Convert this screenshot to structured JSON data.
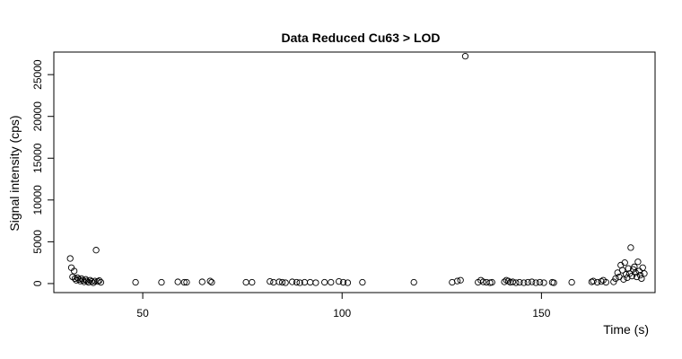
{
  "chart_data": {
    "type": "scatter",
    "title": "Data Reduced Cu63 > LOD",
    "xlabel": "Time (s)",
    "ylabel": "Signal intensity (cps)",
    "xlim": [
      27.7,
      178.5
    ],
    "ylim": [
      -1080,
      27700
    ],
    "xticks": [
      50,
      100,
      150
    ],
    "yticks": [
      0,
      5000,
      10000,
      15000,
      20000,
      25000
    ],
    "marker": "open-circle",
    "grid": false,
    "legend": "none",
    "points": [
      {
        "x": 31.8,
        "y": 3000
      },
      {
        "x": 32.1,
        "y": 1900
      },
      {
        "x": 32.4,
        "y": 800
      },
      {
        "x": 32.8,
        "y": 1500
      },
      {
        "x": 33.0,
        "y": 600
      },
      {
        "x": 33.3,
        "y": 400
      },
      {
        "x": 33.6,
        "y": 700
      },
      {
        "x": 34.0,
        "y": 500
      },
      {
        "x": 34.3,
        "y": 300
      },
      {
        "x": 34.6,
        "y": 600
      },
      {
        "x": 35.0,
        "y": 400
      },
      {
        "x": 35.3,
        "y": 200
      },
      {
        "x": 35.7,
        "y": 500
      },
      {
        "x": 36.0,
        "y": 300
      },
      {
        "x": 36.4,
        "y": 150
      },
      {
        "x": 36.8,
        "y": 400
      },
      {
        "x": 37.2,
        "y": 250
      },
      {
        "x": 37.6,
        "y": 100
      },
      {
        "x": 38.0,
        "y": 300
      },
      {
        "x": 38.3,
        "y": 4000
      },
      {
        "x": 38.7,
        "y": 250
      },
      {
        "x": 39.1,
        "y": 350
      },
      {
        "x": 39.5,
        "y": 150
      },
      {
        "x": 48.2,
        "y": 150
      },
      {
        "x": 54.7,
        "y": 150
      },
      {
        "x": 58.8,
        "y": 200
      },
      {
        "x": 60.4,
        "y": 150
      },
      {
        "x": 61.0,
        "y": 150
      },
      {
        "x": 64.9,
        "y": 200
      },
      {
        "x": 66.9,
        "y": 300
      },
      {
        "x": 67.3,
        "y": 150
      },
      {
        "x": 75.9,
        "y": 150
      },
      {
        "x": 77.4,
        "y": 150
      },
      {
        "x": 81.9,
        "y": 250
      },
      {
        "x": 82.8,
        "y": 150
      },
      {
        "x": 84.2,
        "y": 200
      },
      {
        "x": 85.0,
        "y": 150
      },
      {
        "x": 85.8,
        "y": 100
      },
      {
        "x": 87.5,
        "y": 200
      },
      {
        "x": 88.6,
        "y": 150
      },
      {
        "x": 89.4,
        "y": 100
      },
      {
        "x": 90.6,
        "y": 150
      },
      {
        "x": 92.0,
        "y": 150
      },
      {
        "x": 93.4,
        "y": 100
      },
      {
        "x": 95.6,
        "y": 150
      },
      {
        "x": 97.2,
        "y": 150
      },
      {
        "x": 99.2,
        "y": 250
      },
      {
        "x": 100.3,
        "y": 150
      },
      {
        "x": 101.4,
        "y": 100
      },
      {
        "x": 105.1,
        "y": 150
      },
      {
        "x": 118.0,
        "y": 150
      },
      {
        "x": 127.6,
        "y": 150
      },
      {
        "x": 128.9,
        "y": 300
      },
      {
        "x": 129.7,
        "y": 400
      },
      {
        "x": 130.9,
        "y": 27200
      },
      {
        "x": 134.1,
        "y": 150
      },
      {
        "x": 134.8,
        "y": 400
      },
      {
        "x": 135.4,
        "y": 200
      },
      {
        "x": 136.2,
        "y": 150
      },
      {
        "x": 137.1,
        "y": 100
      },
      {
        "x": 137.6,
        "y": 150
      },
      {
        "x": 140.7,
        "y": 200
      },
      {
        "x": 141.2,
        "y": 400
      },
      {
        "x": 141.7,
        "y": 300
      },
      {
        "x": 142.2,
        "y": 150
      },
      {
        "x": 142.8,
        "y": 200
      },
      {
        "x": 143.6,
        "y": 100
      },
      {
        "x": 144.5,
        "y": 150
      },
      {
        "x": 145.6,
        "y": 100
      },
      {
        "x": 146.6,
        "y": 150
      },
      {
        "x": 147.6,
        "y": 200
      },
      {
        "x": 148.6,
        "y": 100
      },
      {
        "x": 149.6,
        "y": 150
      },
      {
        "x": 150.6,
        "y": 100
      },
      {
        "x": 152.7,
        "y": 150
      },
      {
        "x": 153.1,
        "y": 100
      },
      {
        "x": 157.6,
        "y": 150
      },
      {
        "x": 162.6,
        "y": 200
      },
      {
        "x": 163.0,
        "y": 300
      },
      {
        "x": 164.0,
        "y": 150
      },
      {
        "x": 165.0,
        "y": 250
      },
      {
        "x": 165.5,
        "y": 400
      },
      {
        "x": 166.2,
        "y": 150
      },
      {
        "x": 168.1,
        "y": 200
      },
      {
        "x": 168.6,
        "y": 600
      },
      {
        "x": 169.1,
        "y": 1300
      },
      {
        "x": 169.5,
        "y": 800
      },
      {
        "x": 169.9,
        "y": 2200
      },
      {
        "x": 170.3,
        "y": 1600
      },
      {
        "x": 170.6,
        "y": 500
      },
      {
        "x": 170.9,
        "y": 2500
      },
      {
        "x": 171.2,
        "y": 1100
      },
      {
        "x": 171.5,
        "y": 700
      },
      {
        "x": 171.8,
        "y": 1800
      },
      {
        "x": 172.1,
        "y": 1200
      },
      {
        "x": 172.4,
        "y": 4300
      },
      {
        "x": 172.7,
        "y": 900
      },
      {
        "x": 173.0,
        "y": 1700
      },
      {
        "x": 173.3,
        "y": 2000
      },
      {
        "x": 173.6,
        "y": 1300
      },
      {
        "x": 173.9,
        "y": 800
      },
      {
        "x": 174.2,
        "y": 2600
      },
      {
        "x": 174.5,
        "y": 1500
      },
      {
        "x": 174.8,
        "y": 1000
      },
      {
        "x": 175.1,
        "y": 600
      },
      {
        "x": 175.4,
        "y": 1900
      },
      {
        "x": 175.8,
        "y": 1200
      }
    ]
  }
}
